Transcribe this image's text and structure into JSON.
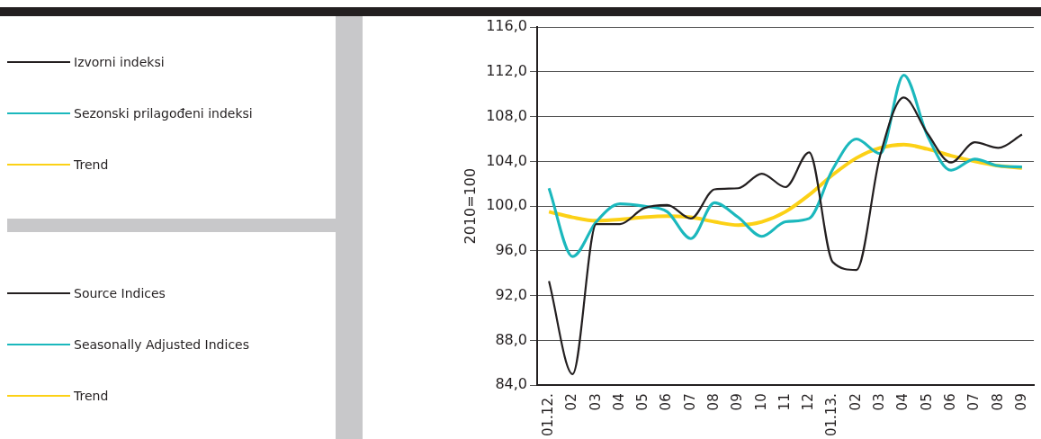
{
  "chart_data": {
    "type": "line",
    "ylabel": "2010=100",
    "categories": [
      "01.12.",
      "02",
      "03",
      "04",
      "05",
      "06",
      "07",
      "08",
      "09",
      "10",
      "11",
      "12",
      "01.13.",
      "02",
      "03",
      "04",
      "05",
      "06",
      "07",
      "08",
      "09"
    ],
    "series": [
      {
        "name": "Izvorni indeksi",
        "color": "#231f20",
        "values": [
          93.3,
          85.0,
          98.4,
          98.4,
          99.8,
          100.1,
          98.9,
          101.5,
          101.6,
          102.9,
          101.7,
          104.8,
          95.0,
          94.3,
          104.5,
          109.7,
          106.5,
          103.9,
          105.7,
          105.2,
          106.4
        ]
      },
      {
        "name": "Sezonski prilagođeni indeksi",
        "color": "#1bb8bd",
        "values": [
          101.6,
          95.5,
          98.6,
          100.2,
          100.0,
          99.5,
          97.1,
          100.3,
          99.0,
          97.3,
          98.6,
          98.9,
          103.3,
          106.0,
          104.7,
          111.7,
          106.3,
          103.2,
          104.2,
          103.6,
          103.5
        ]
      },
      {
        "name": "Trend",
        "color": "#fcd116",
        "values": [
          99.5,
          99.0,
          98.7,
          98.8,
          99.0,
          99.1,
          99.0,
          98.6,
          98.3,
          98.6,
          99.5,
          101.0,
          102.8,
          104.3,
          105.2,
          105.5,
          105.1,
          104.5,
          104.0,
          103.6,
          103.4
        ]
      }
    ],
    "annotations": [
      "Source Indices",
      "Seasonally Adjusted Indices",
      "Trend"
    ],
    "ylim": [
      84,
      116
    ],
    "yticks": [
      {
        "value": 84,
        "label": "84,0"
      },
      {
        "value": 88,
        "label": "88,0"
      },
      {
        "value": 92,
        "label": "92,0"
      },
      {
        "value": 96,
        "label": "96,0"
      },
      {
        "value": 100,
        "label": "100,0"
      },
      {
        "value": 104,
        "label": "104,0"
      },
      {
        "value": 108,
        "label": "108,0"
      },
      {
        "value": 112,
        "label": "112,0"
      },
      {
        "value": 116,
        "label": "116,0"
      }
    ],
    "grid": "y",
    "legend": "left",
    "marker": "none",
    "line_style": "solid"
  }
}
